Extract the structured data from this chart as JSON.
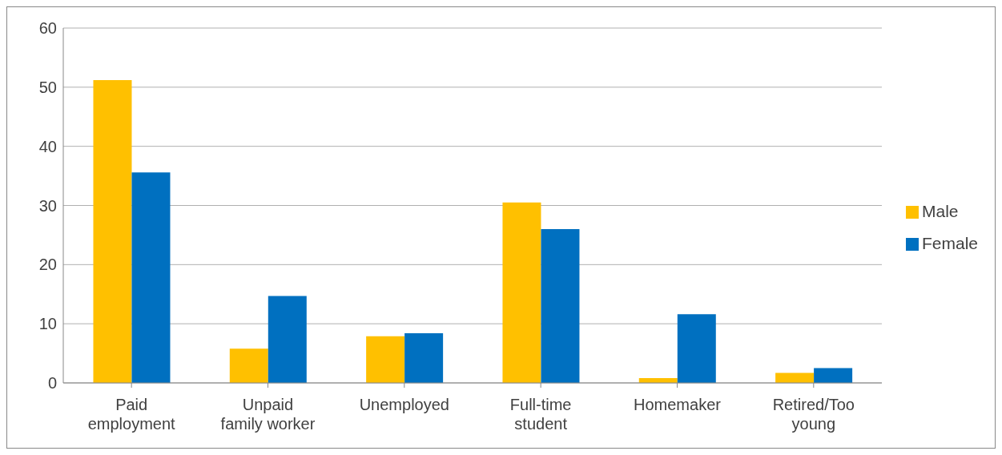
{
  "chart_data": {
    "type": "bar",
    "categories": [
      "Paid employment",
      "Unpaid family worker",
      "Unemployed",
      "Full-time student",
      "Homemaker",
      "Retired/Too young"
    ],
    "series": [
      {
        "name": "Male",
        "color": "#ffc000",
        "values": [
          51.2,
          5.8,
          7.9,
          30.5,
          0.8,
          1.7
        ]
      },
      {
        "name": "Female",
        "color": "#0070c0",
        "values": [
          35.6,
          14.7,
          8.4,
          26.0,
          11.6,
          2.5
        ]
      }
    ],
    "ylim": [
      0,
      60
    ],
    "yticks": [
      0,
      10,
      20,
      30,
      40,
      50,
      60
    ],
    "grid": "y",
    "legend": "right"
  }
}
